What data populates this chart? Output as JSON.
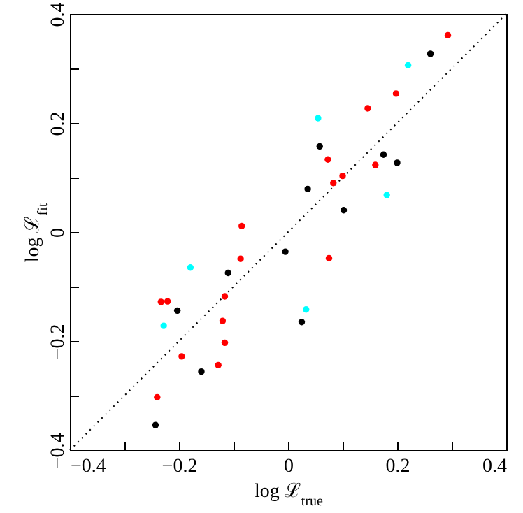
{
  "chart_data": {
    "type": "scatter",
    "xlabel": "log ℒ$_{true}$",
    "ylabel": "log ℒ$_{fit}$",
    "xlim": [
      -0.4,
      0.4
    ],
    "ylim": [
      -0.4,
      0.4
    ],
    "xticks": [
      -0.4,
      {
        "value": -0.3,
        "label": null
      },
      -0.2,
      {
        "value": -0.1,
        "label": null
      },
      0,
      {
        "value": 0.1,
        "label": null
      },
      0.2,
      {
        "value": 0.3,
        "label": null
      },
      0.4
    ],
    "yticks": [
      -0.4,
      {
        "value": -0.3,
        "label": null
      },
      -0.2,
      {
        "value": -0.1,
        "label": null
      },
      0,
      {
        "value": 0.1,
        "label": null
      },
      0.2,
      {
        "value": 0.3,
        "label": null
      },
      0.4
    ],
    "grid": false,
    "marker": "circle",
    "series": [
      {
        "type": "line",
        "color": "#000000",
        "line_style": "dotted",
        "marker": "none",
        "x": [
          -0.4,
          0.4
        ],
        "values": [
          -0.4,
          0.4
        ]
      },
      {
        "color": "#000000",
        "x": [
          0.261,
          0.058,
          0.175,
          0.2,
          0.036,
          0.102,
          -0.005,
          -0.11,
          -0.203,
          0.025,
          -0.159,
          -0.243
        ],
        "values": [
          0.327,
          0.157,
          0.142,
          0.127,
          0.079,
          0.04,
          -0.036,
          -0.075,
          -0.144,
          -0.165,
          -0.256,
          -0.354
        ]
      },
      {
        "color": "#ff0000",
        "x": [
          0.293,
          0.198,
          0.146,
          0.073,
          0.16,
          0.1,
          0.083,
          -0.085,
          -0.087,
          0.075,
          -0.116,
          -0.233,
          -0.221,
          -0.12,
          -0.116,
          -0.195,
          -0.128,
          -0.24
        ],
        "values": [
          0.361,
          0.254,
          0.227,
          0.133,
          0.123,
          0.103,
          0.09,
          0.011,
          -0.049,
          -0.048,
          -0.118,
          -0.128,
          -0.127,
          -0.163,
          -0.203,
          -0.228,
          -0.244,
          -0.303
        ]
      },
      {
        "color": "#00ffff",
        "x": [
          0.22,
          0.055,
          0.181,
          -0.179,
          0.033,
          -0.228
        ],
        "values": [
          0.306,
          0.209,
          0.068,
          -0.065,
          -0.142,
          -0.172
        ]
      }
    ]
  }
}
